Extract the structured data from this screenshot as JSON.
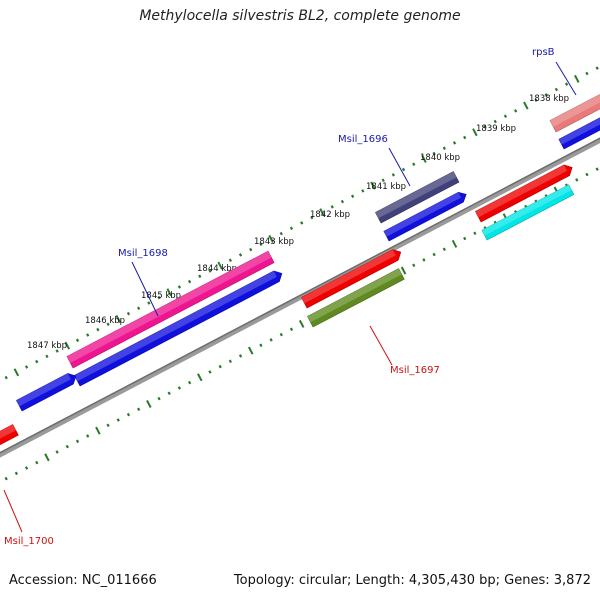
{
  "title": "Methylocella silvestris BL2, complete genome",
  "footer": {
    "accession": "Accession: NC_011666",
    "summary": "Topology: circular; Length: 4,305,430 bp; Genes: 3,872"
  },
  "colors": {
    "backbone": "#808080",
    "tick": "#2a7a2a",
    "ruler_text": "#111111",
    "label_forward": "#1a1aa8",
    "label_reverse": "#cc1111"
  },
  "ruler_labels": [
    "1838 kbp",
    "1839 kbp",
    "1840 kbp",
    "1841 kbp",
    "1842 kbp",
    "1843 kbp",
    "1844 kbp",
    "1845 kbp",
    "1846 kbp",
    "1847 kbp"
  ],
  "genes": [
    {
      "id": "rpsB",
      "label": "rpsB",
      "strand": "+",
      "color": "#e87a7a"
    },
    {
      "id": "g_top_blue",
      "label": "",
      "strand": "+",
      "color": "#1010dd"
    },
    {
      "id": "Msil_1696",
      "label": "Msil_1696",
      "strand": "+",
      "color": "#40407a"
    },
    {
      "id": "g_1696_blue",
      "label": "",
      "strand": "+",
      "color": "#1010dd"
    },
    {
      "id": "g_red_right",
      "label": "",
      "strand": "-",
      "color": "#ee0000"
    },
    {
      "id": "g_cyan",
      "label": "",
      "strand": "-",
      "color": "#00e5e5"
    },
    {
      "id": "Msil_1697",
      "label": "Msil_1697",
      "strand": "-",
      "color": "#ee0000"
    },
    {
      "id": "g_olive",
      "label": "",
      "strand": "-",
      "color": "#5f8a20"
    },
    {
      "id": "Msil_1698",
      "label": "Msil_1698",
      "strand": "+",
      "color": "#ee1590"
    },
    {
      "id": "g_1698_blue",
      "label": "",
      "strand": "+",
      "color": "#1010dd"
    },
    {
      "id": "g_left_blue",
      "label": "",
      "strand": "+",
      "color": "#1010dd"
    },
    {
      "id": "Msil_1700",
      "label": "Msil_1700",
      "strand": "-",
      "color": "#ee0000"
    }
  ]
}
